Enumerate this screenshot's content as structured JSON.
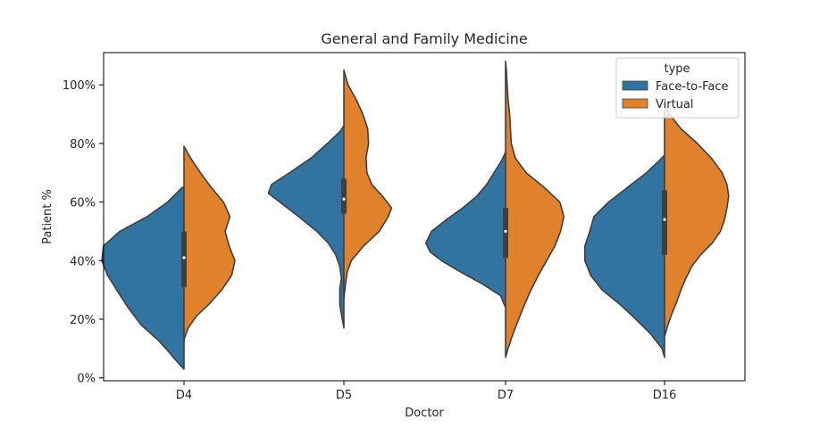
{
  "chart_data": {
    "type": "violin",
    "title": "General and Family Medicine",
    "xlabel": "Doctor",
    "ylabel": "Patient %",
    "categories": [
      "D4",
      "D5",
      "D7",
      "D16"
    ],
    "ylim": [
      -1,
      111
    ],
    "yticks": [
      {
        "value": 0,
        "label": "0%"
      },
      {
        "value": 20,
        "label": "20%"
      },
      {
        "value": 40,
        "label": "40%"
      },
      {
        "value": 60,
        "label": "60%"
      },
      {
        "value": 80,
        "label": "80%"
      },
      {
        "value": 100,
        "label": "100%"
      }
    ],
    "legend": {
      "title": "type",
      "placement": "top-right",
      "entries": [
        {
          "name": "Face-to-Face",
          "color": "#3274a1"
        },
        {
          "name": "Virtual",
          "color": "#e1812c"
        }
      ]
    },
    "grid": false,
    "split": true,
    "series": [
      {
        "name": "Face-to-Face",
        "color": "#3274a1",
        "side": "left",
        "violins": [
          {
            "category": "D4",
            "profile": [
              [
                3,
                0
              ],
              [
                6,
                0.1
              ],
              [
                9,
                0.19
              ],
              [
                13,
                0.32
              ],
              [
                18,
                0.52
              ],
              [
                24,
                0.68
              ],
              [
                30,
                0.82
              ],
              [
                35,
                0.93
              ],
              [
                40,
                1.0
              ],
              [
                45,
                0.98
              ],
              [
                50,
                0.78
              ],
              [
                55,
                0.45
              ],
              [
                60,
                0.2
              ],
              [
                65,
                0.02
              ]
            ]
          },
          {
            "category": "D5",
            "profile": [
              [
                17,
                0
              ],
              [
                20,
                0.02
              ],
              [
                25,
                0.05
              ],
              [
                30,
                0.05
              ],
              [
                34,
                0.03
              ],
              [
                38,
                0.05
              ],
              [
                42,
                0.1
              ],
              [
                46,
                0.19
              ],
              [
                50,
                0.33
              ],
              [
                55,
                0.55
              ],
              [
                60,
                0.78
              ],
              [
                63,
                0.92
              ],
              [
                66,
                0.88
              ],
              [
                70,
                0.66
              ],
              [
                75,
                0.4
              ],
              [
                80,
                0.2
              ],
              [
                84,
                0.05
              ],
              [
                86,
                0
              ]
            ]
          },
          {
            "category": "D7",
            "profile": [
              [
                24,
                0
              ],
              [
                28,
                0.06
              ],
              [
                32,
                0.28
              ],
              [
                36,
                0.54
              ],
              [
                40,
                0.78
              ],
              [
                43,
                0.92
              ],
              [
                46,
                0.97
              ],
              [
                50,
                0.9
              ],
              [
                54,
                0.72
              ],
              [
                58,
                0.52
              ],
              [
                62,
                0.35
              ],
              [
                66,
                0.23
              ],
              [
                70,
                0.14
              ],
              [
                74,
                0.05
              ],
              [
                77,
                0
              ]
            ]
          },
          {
            "category": "D16",
            "profile": [
              [
                7,
                0
              ],
              [
                10,
                0.03
              ],
              [
                15,
                0.17
              ],
              [
                20,
                0.35
              ],
              [
                25,
                0.54
              ],
              [
                30,
                0.76
              ],
              [
                35,
                0.9
              ],
              [
                40,
                0.97
              ],
              [
                45,
                0.97
              ],
              [
                50,
                0.91
              ],
              [
                55,
                0.86
              ],
              [
                60,
                0.68
              ],
              [
                65,
                0.45
              ],
              [
                70,
                0.22
              ],
              [
                74,
                0.07
              ],
              [
                76,
                0
              ]
            ]
          }
        ]
      },
      {
        "name": "Virtual",
        "color": "#e1812c",
        "side": "right",
        "violins": [
          {
            "category": "D4",
            "profile": [
              [
                13,
                0
              ],
              [
                17,
                0.05
              ],
              [
                21,
                0.15
              ],
              [
                25,
                0.3
              ],
              [
                30,
                0.46
              ],
              [
                35,
                0.58
              ],
              [
                40,
                0.62
              ],
              [
                45,
                0.55
              ],
              [
                50,
                0.5
              ],
              [
                55,
                0.56
              ],
              [
                60,
                0.48
              ],
              [
                65,
                0.33
              ],
              [
                70,
                0.2
              ],
              [
                75,
                0.08
              ],
              [
                79,
                0
              ]
            ]
          },
          {
            "category": "D5",
            "profile": [
              [
                27,
                0
              ],
              [
                32,
                0.02
              ],
              [
                36,
                0.04
              ],
              [
                40,
                0.09
              ],
              [
                45,
                0.24
              ],
              [
                50,
                0.43
              ],
              [
                55,
                0.54
              ],
              [
                58,
                0.58
              ],
              [
                62,
                0.47
              ],
              [
                66,
                0.34
              ],
              [
                70,
                0.28
              ],
              [
                75,
                0.27
              ],
              [
                80,
                0.3
              ],
              [
                85,
                0.29
              ],
              [
                90,
                0.23
              ],
              [
                95,
                0.15
              ],
              [
                100,
                0.05
              ],
              [
                105,
                0
              ]
            ]
          },
          {
            "category": "D7",
            "profile": [
              [
                7,
                0
              ],
              [
                10,
                0.03
              ],
              [
                15,
                0.09
              ],
              [
                20,
                0.16
              ],
              [
                25,
                0.23
              ],
              [
                30,
                0.31
              ],
              [
                35,
                0.4
              ],
              [
                40,
                0.5
              ],
              [
                45,
                0.6
              ],
              [
                50,
                0.67
              ],
              [
                55,
                0.71
              ],
              [
                60,
                0.66
              ],
              [
                65,
                0.47
              ],
              [
                70,
                0.25
              ],
              [
                75,
                0.12
              ],
              [
                80,
                0.07
              ],
              [
                85,
                0.06
              ],
              [
                90,
                0.05
              ],
              [
                95,
                0.03
              ],
              [
                100,
                0.02
              ],
              [
                105,
                0.01
              ],
              [
                108,
                0
              ]
            ]
          },
          {
            "category": "D16",
            "profile": [
              [
                14,
                0
              ],
              [
                18,
                0.04
              ],
              [
                22,
                0.09
              ],
              [
                26,
                0.15
              ],
              [
                30,
                0.2
              ],
              [
                34,
                0.26
              ],
              [
                38,
                0.33
              ],
              [
                42,
                0.44
              ],
              [
                46,
                0.58
              ],
              [
                50,
                0.68
              ],
              [
                54,
                0.73
              ],
              [
                58,
                0.76
              ],
              [
                62,
                0.78
              ],
              [
                66,
                0.76
              ],
              [
                70,
                0.7
              ],
              [
                75,
                0.57
              ],
              [
                80,
                0.4
              ],
              [
                85,
                0.2
              ],
              [
                90,
                0.06
              ],
              [
                94,
                0
              ]
            ]
          }
        ]
      }
    ],
    "boxes": [
      {
        "category": "D4",
        "q1": 31,
        "median": 41,
        "q3": 50
      },
      {
        "category": "D5",
        "q1": 56,
        "median": 61,
        "q3": 68
      },
      {
        "category": "D7",
        "q1": 41,
        "median": 50,
        "q3": 58
      },
      {
        "category": "D16",
        "q1": 42,
        "median": 54,
        "q3": 64
      }
    ]
  }
}
